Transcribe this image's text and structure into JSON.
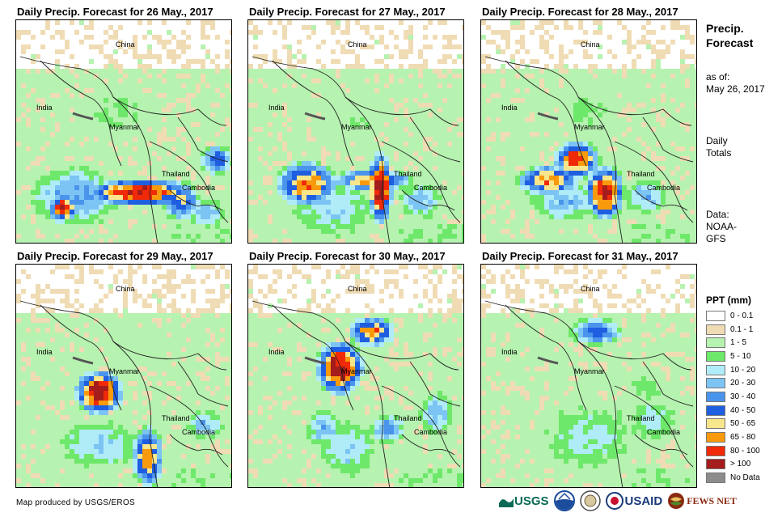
{
  "panels": [
    {
      "title": "Daily Precip. Forecast for 26 May., 2017",
      "theme": 0
    },
    {
      "title": "Daily Precip. Forecast for 27 May., 2017",
      "theme": 1
    },
    {
      "title": "Daily Precip. Forecast for 28 May., 2017",
      "theme": 2
    },
    {
      "title": "Daily Precip. Forecast for 29 May., 2017",
      "theme": 3
    },
    {
      "title": "Daily Precip. Forecast for 30 May., 2017",
      "theme": 4
    },
    {
      "title": "Daily Precip. Forecast for 31 May., 2017",
      "theme": 5
    }
  ],
  "map_labels": {
    "china": "China",
    "india": "India",
    "myanmar": "Myanmar",
    "thailand": "Thailand",
    "cambodia": "Cambodia"
  },
  "sidebar": {
    "title_line1": "Precip.",
    "title_line2": "Forecast",
    "asof_line1": "as of:",
    "asof_line2": "May 26, 2017",
    "totals_line1": "Daily",
    "totals_line2": "Totals",
    "data_line1": "Data:",
    "data_line2": "NOAA-",
    "data_line3": "GFS"
  },
  "legend": {
    "title": "PPT (mm)",
    "items": [
      {
        "label": "0 - 0.1",
        "color": "#ffffff"
      },
      {
        "label": "0.1 - 1",
        "color": "#f0dcb4"
      },
      {
        "label": "1 - 5",
        "color": "#b6f2b0"
      },
      {
        "label": "5 - 10",
        "color": "#6ee86a"
      },
      {
        "label": "10 - 20",
        "color": "#b0ecf8"
      },
      {
        "label": "20 - 30",
        "color": "#7cc4f4"
      },
      {
        "label": "30 - 40",
        "color": "#4a94ec"
      },
      {
        "label": "40 - 50",
        "color": "#1f5ee0"
      },
      {
        "label": "50 - 65",
        "color": "#f8e68c"
      },
      {
        "label": "65 - 80",
        "color": "#f89a0c"
      },
      {
        "label": "80 - 100",
        "color": "#f02a08"
      },
      {
        "label": "> 100",
        "color": "#a41c1c"
      },
      {
        "label": "No Data",
        "color": "#8c8c8c"
      }
    ]
  },
  "footer": {
    "credit": "Map produced by USGS/EROS",
    "logo_usgs": "USGS",
    "logo_usaid": "USAID",
    "logo_fewsnet": "FEWS NET"
  }
}
